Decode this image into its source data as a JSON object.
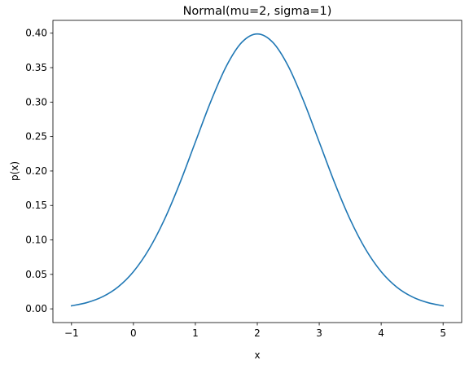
{
  "chart_data": {
    "type": "line",
    "title": "Normal(mu=2, sigma=1)",
    "xlabel": "x",
    "ylabel": "p(x)",
    "xlim": [
      -1.3,
      5.3
    ],
    "ylim": [
      -0.019933,
      0.418593
    ],
    "x_ticks": [
      -1,
      0,
      1,
      2,
      3,
      4,
      5
    ],
    "x_tick_labels": [
      "−1",
      "0",
      "1",
      "2",
      "3",
      "4",
      "5"
    ],
    "y_ticks": [
      0.0,
      0.05,
      0.1,
      0.15,
      0.2,
      0.25,
      0.3,
      0.35,
      0.4
    ],
    "y_tick_labels": [
      "0.00",
      "0.05",
      "0.10",
      "0.15",
      "0.20",
      "0.25",
      "0.30",
      "0.35",
      "0.40"
    ],
    "grid": false,
    "series": [
      {
        "color": "#1f77b4",
        "x": [
          -1.0,
          -0.75,
          -0.5,
          -0.25,
          0.0,
          0.25,
          0.5,
          0.75,
          1.0,
          1.25,
          1.5,
          1.75,
          2.0,
          2.25,
          2.5,
          2.75,
          3.0,
          3.25,
          3.5,
          3.75,
          4.0,
          4.25,
          4.5,
          4.75,
          5.0
        ],
        "y": [
          0.0044,
          0.0091,
          0.0175,
          0.0317,
          0.054,
          0.0863,
          0.1295,
          0.1826,
          0.242,
          0.3011,
          0.3521,
          0.3867,
          0.3989,
          0.3867,
          0.3521,
          0.3011,
          0.242,
          0.1826,
          0.1295,
          0.0863,
          0.054,
          0.0317,
          0.0175,
          0.0091,
          0.0044
        ]
      }
    ]
  }
}
